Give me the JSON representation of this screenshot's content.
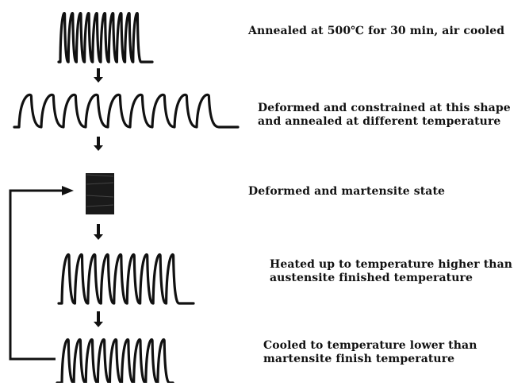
{
  "colors": {
    "ink": "#111111",
    "background": "#ffffff"
  },
  "steps": [
    {
      "id": "annealed",
      "lines": [
        "Annealed at 500℃  for 30 min, air cooled"
      ]
    },
    {
      "id": "deformed-constrained",
      "lines": [
        "Deformed and constrained at this shape",
        "and annealed at different temperature"
      ]
    },
    {
      "id": "martensite",
      "lines": [
        "Deformed and martensite state"
      ]
    },
    {
      "id": "heated",
      "lines": [
        "Heated up to temperature higher than",
        "austensite finished temperature"
      ]
    },
    {
      "id": "cooled",
      "lines": [
        "Cooled to temperature lower than",
        "martensite finish temperature"
      ]
    }
  ]
}
